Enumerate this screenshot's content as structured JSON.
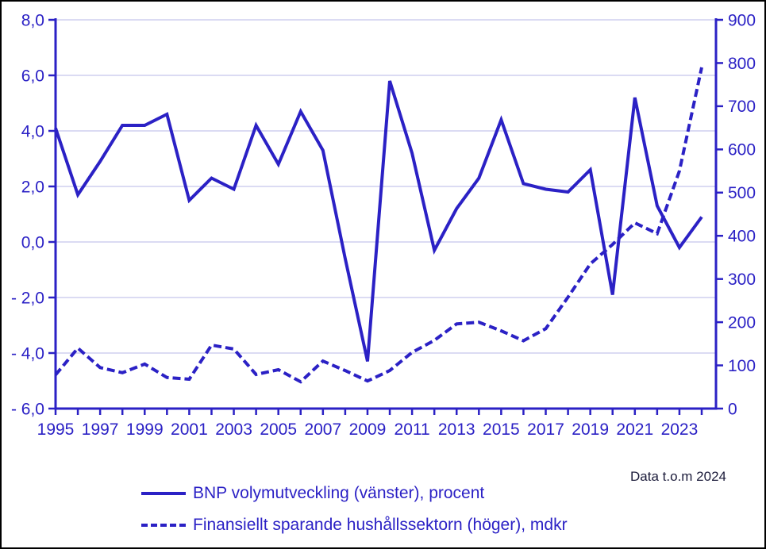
{
  "chart_data": {
    "type": "line",
    "title": "",
    "xlabel": "",
    "ylabel_left": "procent",
    "ylabel_right": "mdkr",
    "grid": "horizontal",
    "legend_position": "bottom-left",
    "x": [
      1995,
      1996,
      1997,
      1998,
      1999,
      2000,
      2001,
      2002,
      2003,
      2004,
      2005,
      2006,
      2007,
      2008,
      2009,
      2010,
      2011,
      2012,
      2013,
      2014,
      2015,
      2016,
      2017,
      2018,
      2019,
      2020,
      2021,
      2022,
      2023,
      2024
    ],
    "x_tick_labels": [
      "1995",
      "1997",
      "1999",
      "2001",
      "2003",
      "2005",
      "2007",
      "2009",
      "2011",
      "2013",
      "2015",
      "2017",
      "2019",
      "2021",
      "2023"
    ],
    "left_axis": {
      "min": -6,
      "max": 8,
      "tick_values": [
        8,
        6,
        4,
        2,
        0,
        -2,
        -4,
        -6
      ],
      "tick_labels": [
        "8,0",
        "6,0",
        "4,0",
        "2,0",
        "0,0",
        "- 2,0",
        "- 4,0",
        "- 6,0"
      ]
    },
    "right_axis": {
      "min": 0,
      "max": 900,
      "tick_values": [
        900,
        800,
        700,
        600,
        500,
        400,
        300,
        200,
        100,
        0
      ],
      "tick_labels": [
        "900",
        "800",
        "700",
        "600",
        "500",
        "400",
        "300",
        "200",
        "100",
        "0"
      ]
    },
    "series": [
      {
        "name": "BNP volymutveckling (vänster), procent",
        "axis": "left",
        "line_style": "solid",
        "values": [
          4.1,
          1.7,
          2.9,
          4.2,
          4.2,
          4.6,
          1.5,
          2.3,
          1.9,
          4.2,
          2.8,
          4.7,
          3.3,
          -0.6,
          -4.3,
          5.8,
          3.2,
          -0.3,
          1.2,
          2.3,
          4.4,
          2.1,
          1.9,
          1.8,
          2.6,
          -1.9,
          5.2,
          1.3,
          -0.2,
          0.9
        ]
      },
      {
        "name": "Finansiellt sparande hushållssektorn (höger), mdkr",
        "axis": "right",
        "line_style": "dashed",
        "values": [
          78,
          140,
          95,
          83,
          103,
          72,
          68,
          147,
          138,
          79,
          90,
          62,
          110,
          88,
          64,
          88,
          130,
          158,
          196,
          200,
          180,
          157,
          185,
          258,
          335,
          380,
          430,
          405,
          550,
          790
        ]
      }
    ]
  },
  "legend": {
    "items": [
      {
        "label": "BNP volymutveckling (vänster), procent",
        "style": "solid"
      },
      {
        "label": "Finansiellt sparande hushållssektorn (höger), mdkr",
        "style": "dashed"
      }
    ]
  },
  "footnote": "Data t.o.m 2024",
  "colors": {
    "accent": "#2b21c5",
    "grid": "#cfcfef",
    "footnote": "#1b1b3a",
    "background": "#ffffff",
    "frame_border": "#000000"
  }
}
